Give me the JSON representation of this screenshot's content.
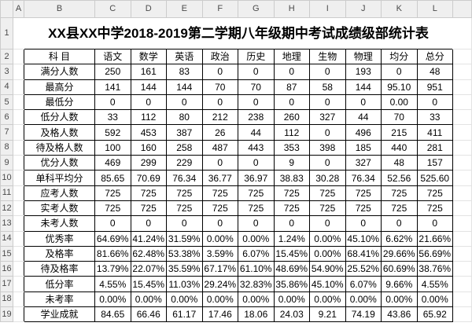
{
  "sheet": {
    "column_letters": [
      "A",
      "B",
      "C",
      "D",
      "E",
      "F",
      "G",
      "H",
      "I",
      "J",
      "K",
      "L"
    ],
    "row_numbers": [
      "1",
      "2",
      "3",
      "4",
      "5",
      "6",
      "7",
      "8",
      "9",
      "10",
      "11",
      "12",
      "13",
      "14",
      "15",
      "16",
      "17",
      "18",
      "19"
    ],
    "title": "XX县XX中学2018-2019第二学期八年级期中考试成绩级部统计表",
    "header_label": "科 目",
    "subjects": [
      "语文",
      "数学",
      "英语",
      "政治",
      "历史",
      "地理",
      "生物",
      "物理",
      "均分",
      "总分"
    ],
    "rows": [
      {
        "label": "满分人数",
        "values": [
          "250",
          "161",
          "83",
          "0",
          "0",
          "0",
          "0",
          "193",
          "0",
          "48"
        ]
      },
      {
        "label": "最高分",
        "values": [
          "141",
          "144",
          "144",
          "70",
          "70",
          "87",
          "58",
          "144",
          "95.10",
          "951"
        ]
      },
      {
        "label": "最低分",
        "values": [
          "0",
          "0",
          "0",
          "0",
          "0",
          "0",
          "0",
          "0",
          "0.00",
          "0"
        ]
      },
      {
        "label": "低分人数",
        "values": [
          "33",
          "112",
          "80",
          "212",
          "238",
          "260",
          "327",
          "44",
          "70",
          "33"
        ]
      },
      {
        "label": "及格人数",
        "values": [
          "592",
          "453",
          "387",
          "26",
          "44",
          "112",
          "0",
          "496",
          "215",
          "411"
        ]
      },
      {
        "label": "待及格人数",
        "values": [
          "100",
          "160",
          "258",
          "487",
          "443",
          "353",
          "398",
          "185",
          "440",
          "281"
        ]
      },
      {
        "label": "优分人数",
        "values": [
          "469",
          "299",
          "229",
          "0",
          "0",
          "9",
          "0",
          "327",
          "48",
          "157"
        ]
      },
      {
        "label": "单科平均分",
        "values": [
          "85.65",
          "70.69",
          "76.34",
          "36.77",
          "36.97",
          "38.83",
          "30.28",
          "76.34",
          "52.56",
          "525.60"
        ]
      },
      {
        "label": "应考人数",
        "values": [
          "725",
          "725",
          "725",
          "725",
          "725",
          "725",
          "725",
          "725",
          "725",
          "725"
        ]
      },
      {
        "label": "实考人数",
        "values": [
          "725",
          "725",
          "725",
          "725",
          "725",
          "725",
          "725",
          "725",
          "725",
          "725"
        ]
      },
      {
        "label": "未考人数",
        "values": [
          "0",
          "0",
          "0",
          "0",
          "0",
          "0",
          "0",
          "0",
          "0",
          "0"
        ]
      },
      {
        "label": "优秀率",
        "values": [
          "64.69%",
          "41.24%",
          "31.59%",
          "0.00%",
          "0.00%",
          "1.24%",
          "0.00%",
          "45.10%",
          "6.62%",
          "21.66%"
        ]
      },
      {
        "label": "及格率",
        "values": [
          "81.66%",
          "62.48%",
          "53.38%",
          "3.59%",
          "6.07%",
          "15.45%",
          "0.00%",
          "68.41%",
          "29.66%",
          "56.69%"
        ]
      },
      {
        "label": "待及格率",
        "values": [
          "13.79%",
          "22.07%",
          "35.59%",
          "67.17%",
          "61.10%",
          "48.69%",
          "54.90%",
          "25.52%",
          "60.69%",
          "38.76%"
        ]
      },
      {
        "label": "低分率",
        "values": [
          "4.55%",
          "15.45%",
          "11.03%",
          "29.24%",
          "32.83%",
          "35.86%",
          "45.10%",
          "6.07%",
          "9.66%",
          "4.55%"
        ]
      },
      {
        "label": "未考率",
        "values": [
          "0.00%",
          "0.00%",
          "0.00%",
          "0.00%",
          "0.00%",
          "0.00%",
          "0.00%",
          "0.00%",
          "0.00%",
          "0.00%"
        ]
      },
      {
        "label": "学业成就",
        "values": [
          "84.65",
          "66.46",
          "61.17",
          "17.46",
          "18.06",
          "24.03",
          "9.21",
          "74.19",
          "43.86",
          "65.92"
        ]
      }
    ]
  }
}
